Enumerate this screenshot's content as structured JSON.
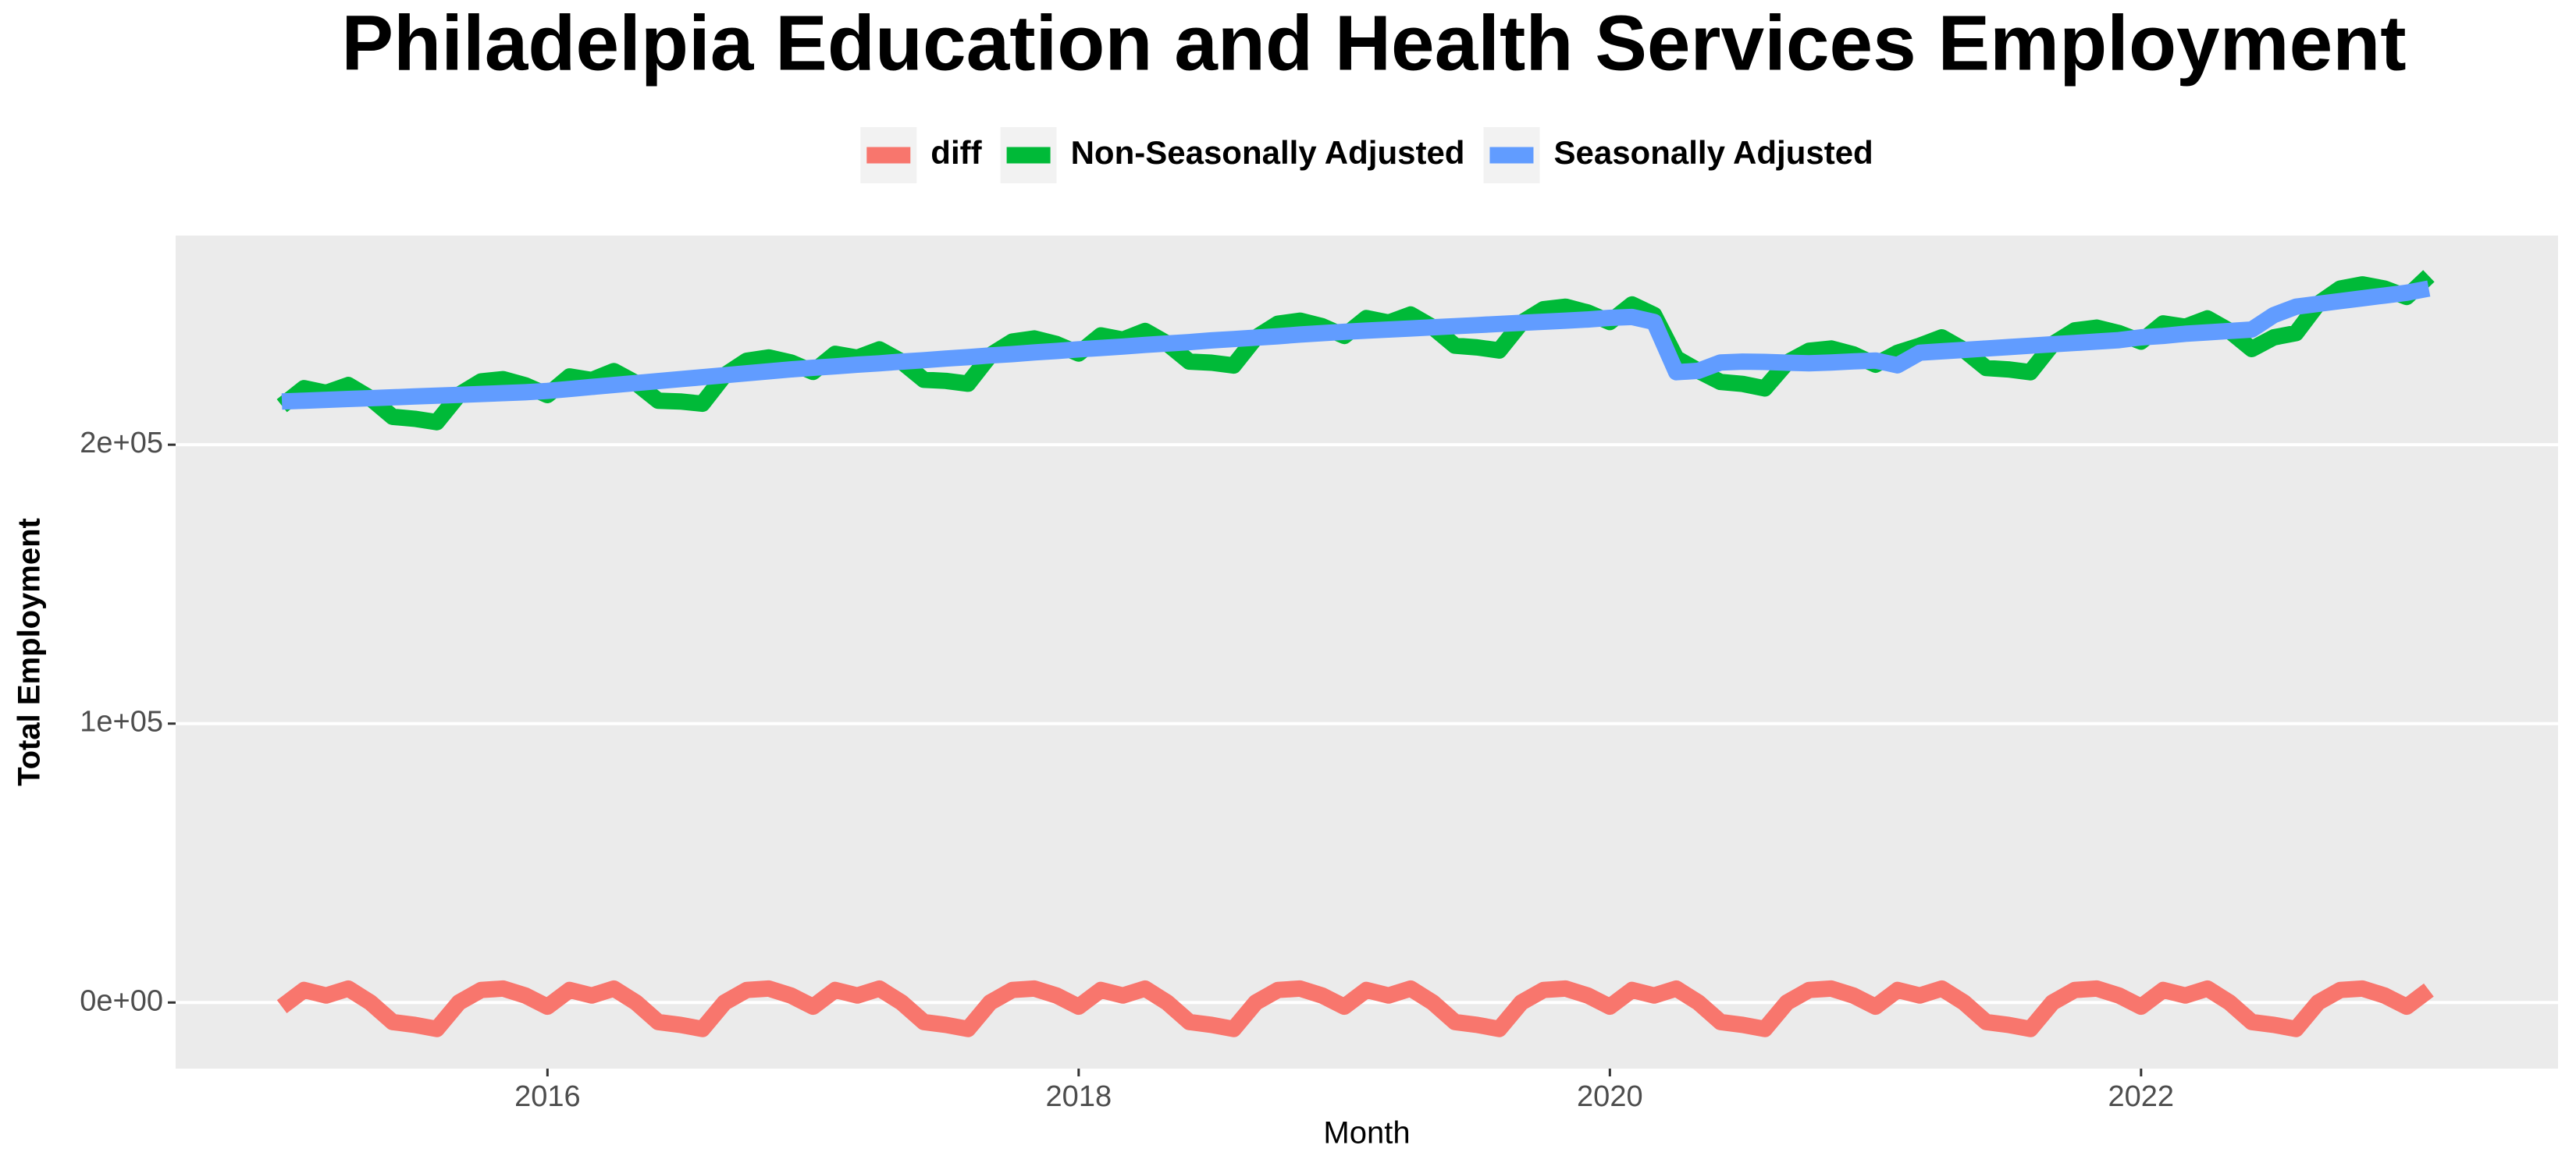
{
  "chart_data": {
    "type": "line",
    "title": "Philadelpia Education and Health Services Employment",
    "x_label": "Month",
    "y_label": "Total Employment",
    "x": [
      "2015-01",
      "2015-02",
      "2015-03",
      "2015-04",
      "2015-05",
      "2015-06",
      "2015-07",
      "2015-08",
      "2015-09",
      "2015-10",
      "2015-11",
      "2015-12",
      "2016-01",
      "2016-02",
      "2016-03",
      "2016-04",
      "2016-05",
      "2016-06",
      "2016-07",
      "2016-08",
      "2016-09",
      "2016-10",
      "2016-11",
      "2016-12",
      "2017-01",
      "2017-02",
      "2017-03",
      "2017-04",
      "2017-05",
      "2017-06",
      "2017-07",
      "2017-08",
      "2017-09",
      "2017-10",
      "2017-11",
      "2017-12",
      "2018-01",
      "2018-02",
      "2018-03",
      "2018-04",
      "2018-05",
      "2018-06",
      "2018-07",
      "2018-08",
      "2018-09",
      "2018-10",
      "2018-11",
      "2018-12",
      "2019-01",
      "2019-02",
      "2019-03",
      "2019-04",
      "2019-05",
      "2019-06",
      "2019-07",
      "2019-08",
      "2019-09",
      "2019-10",
      "2019-11",
      "2019-12",
      "2020-01",
      "2020-02",
      "2020-03",
      "2020-04",
      "2020-05",
      "2020-06",
      "2020-07",
      "2020-08",
      "2020-09",
      "2020-10",
      "2020-11",
      "2020-12",
      "2021-01",
      "2021-02",
      "2021-03",
      "2021-04",
      "2021-05",
      "2021-06",
      "2021-07",
      "2021-08",
      "2021-09",
      "2021-10",
      "2021-11",
      "2021-12",
      "2022-01",
      "2022-02",
      "2022-03",
      "2022-04",
      "2022-05",
      "2022-06",
      "2022-07",
      "2022-08",
      "2022-09",
      "2022-10",
      "2022-11",
      "2022-12",
      "2023-01",
      "2023-02"
    ],
    "series": [
      {
        "name": "diff",
        "color": "#F8766D",
        "values": [
          -1500,
          4500,
          2500,
          5000,
          0,
          -7000,
          -8000,
          -9500,
          0,
          4500,
          5000,
          2500,
          -1500,
          4500,
          2500,
          5000,
          0,
          -7000,
          -8000,
          -9500,
          0,
          4500,
          5000,
          2500,
          -1500,
          4500,
          2500,
          5000,
          0,
          -7000,
          -8000,
          -9500,
          0,
          4500,
          5000,
          2500,
          -1500,
          4500,
          2500,
          5000,
          0,
          -7000,
          -8000,
          -9500,
          0,
          4500,
          5000,
          2500,
          -1500,
          4500,
          2500,
          5000,
          0,
          -7000,
          -8000,
          -9500,
          0,
          4500,
          5000,
          2500,
          -1500,
          4500,
          2500,
          5000,
          0,
          -7000,
          -8000,
          -9500,
          0,
          4500,
          5000,
          2500,
          -1500,
          4500,
          2500,
          5000,
          0,
          -7000,
          -8000,
          -9500,
          0,
          4500,
          5000,
          2500,
          -1500,
          4500,
          2500,
          5000,
          0,
          -7000,
          -8000,
          -9500,
          0,
          4500,
          5000,
          2500,
          -1500,
          4500
        ]
      },
      {
        "name": "Non-Seasonally Adjusted",
        "color": "#00BA38",
        "values": [
          214000,
          220300,
          218600,
          221400,
          216700,
          210000,
          209300,
          208100,
          217900,
          222700,
          223500,
          221300,
          217800,
          224500,
          223200,
          226400,
          222100,
          215800,
          215500,
          214700,
          224900,
          230100,
          231300,
          229500,
          226100,
          232600,
          231200,
          234200,
          229800,
          223300,
          222900,
          221900,
          232000,
          237000,
          238100,
          236100,
          232700,
          239200,
          237700,
          240800,
          236300,
          229800,
          229400,
          228400,
          238400,
          243400,
          244500,
          242500,
          239000,
          245400,
          243800,
          246700,
          242100,
          235500,
          234900,
          233800,
          243700,
          248600,
          249500,
          247400,
          244000,
          250300,
          246500,
          231000,
          226500,
          222500,
          221800,
          220200,
          229400,
          233700,
          234500,
          232400,
          228700,
          233000,
          235500,
          238500,
          234000,
          227500,
          227000,
          226000,
          236000,
          241000,
          242000,
          240000,
          237000,
          243500,
          242300,
          245300,
          240800,
          234300,
          238500,
          240000,
          250500,
          256000,
          257500,
          256000,
          253000,
          260500
        ]
      },
      {
        "name": "Seasonally Adjusted",
        "color": "#619CFF",
        "values": [
          215500,
          215800,
          216100,
          216400,
          216700,
          217000,
          217300,
          217600,
          217900,
          218200,
          218500,
          218800,
          219300,
          220000,
          220700,
          221400,
          222100,
          222800,
          223500,
          224200,
          224900,
          225600,
          226300,
          227000,
          227600,
          228100,
          228700,
          229200,
          229800,
          230300,
          230900,
          231400,
          232000,
          232500,
          233100,
          233600,
          234200,
          234700,
          235200,
          235800,
          236300,
          236800,
          237400,
          237900,
          238400,
          238900,
          239500,
          240000,
          240500,
          240900,
          241300,
          241700,
          242100,
          242500,
          242900,
          243300,
          243700,
          244100,
          244500,
          244900,
          245500,
          245800,
          244000,
          226000,
          226500,
          229500,
          229800,
          229700,
          229400,
          229200,
          229500,
          229900,
          230200,
          228500,
          233000,
          233500,
          234000,
          234500,
          235000,
          235500,
          236000,
          236500,
          237000,
          237500,
          238500,
          239000,
          239800,
          240300,
          240800,
          241300,
          246500,
          249500,
          250500,
          251500,
          252500,
          253500,
          254500,
          256000
        ]
      }
    ],
    "xlim": [
      2014.6,
      2023.57
    ],
    "xticks": [
      2016,
      2018,
      2020,
      2022
    ],
    "ylim": [
      -23700,
      275000
    ],
    "yticks": [
      {
        "value": 0,
        "label": "0e+00"
      },
      {
        "value": 100000,
        "label": "1e+05"
      },
      {
        "value": 200000,
        "label": "2e+05"
      }
    ],
    "grid": true,
    "legend": "top"
  }
}
